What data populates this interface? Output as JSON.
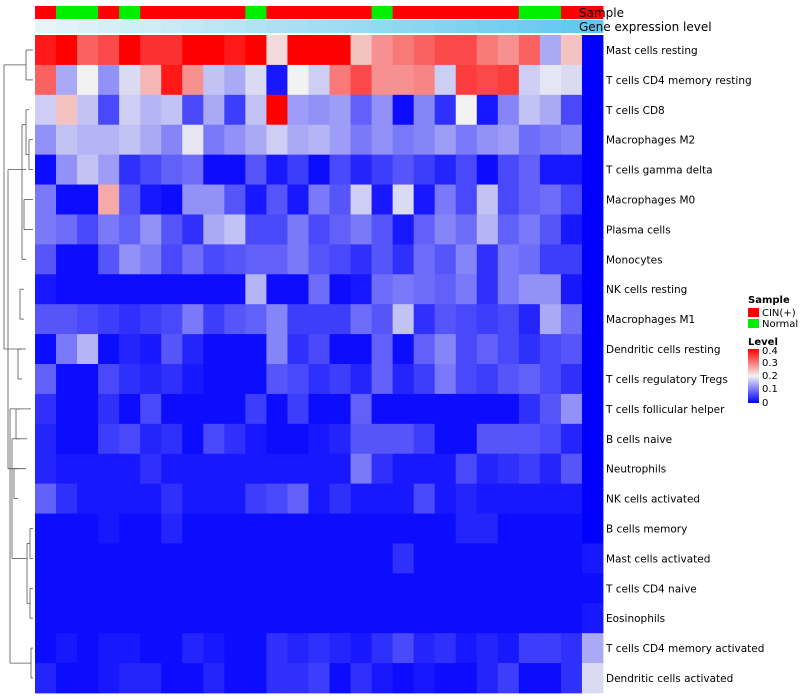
{
  "chart_data": {
    "type": "heatmap",
    "title": "",
    "color_scale": {
      "min": 0,
      "mid": 0.2,
      "max": 0.4,
      "low_color": "#0000ff",
      "mid_color": "#f2f2f2",
      "high_color": "#ff0000"
    },
    "annotations": {
      "sample": {
        "label": "Sample",
        "values": [
          "CIN(+)",
          "Normal",
          "Normal",
          "CIN(+)",
          "Normal",
          "CIN(+)",
          "CIN(+)",
          "CIN(+)",
          "CIN(+)",
          "CIN(+)",
          "Normal",
          "CIN(+)",
          "CIN(+)",
          "CIN(+)",
          "CIN(+)",
          "CIN(+)",
          "Normal",
          "CIN(+)",
          "CIN(+)",
          "CIN(+)",
          "CIN(+)",
          "CIN(+)",
          "CIN(+)",
          "Normal",
          "Normal",
          "CIN(+)",
          "CIN(+)"
        ],
        "colors": {
          "CIN(+)": "#ff0000",
          "Normal": "#00ee00"
        }
      },
      "gene_expression": {
        "label": "Gene expression level",
        "light_color": "#e6f4f8",
        "dark_color": "#5ec8ee"
      }
    },
    "legend": {
      "sample_title": "Sample",
      "sample_items": [
        {
          "label": "CIN(+)",
          "color": "#ff0000"
        },
        {
          "label": "Normal",
          "color": "#00ee00"
        }
      ],
      "level_title": "Level",
      "level_ticks": [
        "0.4",
        "0.3",
        "0.2",
        "0.1",
        "0"
      ]
    },
    "rows": [
      "Mast cells resting",
      "T cells CD4 memory resting",
      "T cells CD8",
      "Macrophages M2",
      "T cells gamma delta",
      "Macrophages M0",
      "Plasma cells",
      "Monocytes",
      "NK cells resting",
      "Macrophages M1",
      "Dendritic cells resting",
      "T cells regulatory  Tregs",
      "T cells follicular helper",
      "B cells naive",
      "Neutrophils",
      "NK cells activated",
      "B cells memory",
      "Mast cells activated",
      "T cells CD4 naive",
      "Eosinophils",
      "T cells CD4 memory activated",
      "Dendritic cells activated"
    ],
    "values": [
      [
        0.38,
        0.4,
        0.32,
        0.34,
        0.4,
        0.36,
        0.36,
        0.4,
        0.4,
        0.38,
        0.4,
        0.22,
        0.4,
        0.4,
        0.4,
        0.24,
        0.28,
        0.3,
        0.32,
        0.34,
        0.34,
        0.3,
        0.28,
        0.32,
        0.14,
        0.24,
        0.0
      ],
      [
        0.32,
        0.14,
        0.2,
        0.12,
        0.18,
        0.25,
        0.38,
        0.28,
        0.16,
        0.14,
        0.18,
        0.02,
        0.2,
        0.17,
        0.3,
        0.34,
        0.28,
        0.28,
        0.29,
        0.17,
        0.35,
        0.34,
        0.35,
        0.17,
        0.19,
        0.18,
        0.0
      ],
      [
        0.17,
        0.24,
        0.16,
        0.06,
        0.17,
        0.15,
        0.16,
        0.06,
        0.14,
        0.05,
        0.16,
        0.4,
        0.13,
        0.12,
        0.13,
        0.08,
        0.12,
        0.01,
        0.11,
        0.04,
        0.2,
        0.02,
        0.11,
        0.16,
        0.14,
        0.06,
        0.0
      ],
      [
        0.12,
        0.16,
        0.15,
        0.15,
        0.16,
        0.14,
        0.11,
        0.19,
        0.1,
        0.12,
        0.14,
        0.17,
        0.14,
        0.15,
        0.13,
        0.1,
        0.12,
        0.1,
        0.11,
        0.13,
        0.1,
        0.12,
        0.13,
        0.09,
        0.1,
        0.11,
        0.0
      ],
      [
        0.01,
        0.12,
        0.16,
        0.13,
        0.04,
        0.06,
        0.08,
        0.09,
        0.01,
        0.01,
        0.07,
        0.02,
        0.05,
        0.01,
        0.06,
        0.03,
        0.05,
        0.07,
        0.05,
        0.03,
        0.06,
        0.01,
        0.06,
        0.08,
        0.02,
        0.02,
        0.0
      ],
      [
        0.1,
        0.01,
        0.01,
        0.26,
        0.07,
        0.02,
        0.01,
        0.12,
        0.12,
        0.07,
        0.02,
        0.07,
        0.02,
        0.1,
        0.07,
        0.17,
        0.02,
        0.18,
        0.02,
        0.1,
        0.06,
        0.16,
        0.06,
        0.08,
        0.09,
        0.06,
        0.0
      ],
      [
        0.1,
        0.09,
        0.06,
        0.1,
        0.08,
        0.12,
        0.07,
        0.04,
        0.14,
        0.16,
        0.06,
        0.06,
        0.1,
        0.06,
        0.08,
        0.1,
        0.07,
        0.02,
        0.08,
        0.11,
        0.09,
        0.15,
        0.08,
        0.1,
        0.07,
        0.02,
        0.0
      ],
      [
        0.07,
        0.01,
        0.01,
        0.07,
        0.12,
        0.1,
        0.06,
        0.09,
        0.06,
        0.07,
        0.08,
        0.08,
        0.1,
        0.07,
        0.06,
        0.04,
        0.07,
        0.04,
        0.09,
        0.07,
        0.11,
        0.04,
        0.1,
        0.09,
        0.05,
        0.05,
        0.0
      ],
      [
        0.02,
        0.01,
        0.01,
        0.01,
        0.01,
        0.01,
        0.01,
        0.01,
        0.01,
        0.01,
        0.15,
        0.01,
        0.01,
        0.09,
        0.01,
        0.02,
        0.09,
        0.1,
        0.09,
        0.08,
        0.1,
        0.04,
        0.1,
        0.12,
        0.12,
        0.02,
        0.0
      ],
      [
        0.07,
        0.07,
        0.06,
        0.05,
        0.04,
        0.05,
        0.06,
        0.1,
        0.05,
        0.07,
        0.08,
        0.11,
        0.05,
        0.05,
        0.05,
        0.09,
        0.07,
        0.16,
        0.04,
        0.07,
        0.06,
        0.05,
        0.06,
        0.03,
        0.14,
        0.09,
        0.0
      ],
      [
        0.01,
        0.1,
        0.15,
        0.01,
        0.03,
        0.02,
        0.07,
        0.03,
        0.01,
        0.01,
        0.01,
        0.11,
        0.04,
        0.06,
        0.01,
        0.01,
        0.08,
        0.01,
        0.08,
        0.11,
        0.06,
        0.08,
        0.06,
        0.04,
        0.06,
        0.07,
        0.0
      ],
      [
        0.08,
        0.01,
        0.01,
        0.06,
        0.04,
        0.03,
        0.04,
        0.02,
        0.01,
        0.01,
        0.01,
        0.07,
        0.06,
        0.04,
        0.05,
        0.03,
        0.08,
        0.03,
        0.05,
        0.1,
        0.06,
        0.05,
        0.07,
        0.08,
        0.06,
        0.04,
        0.0
      ],
      [
        0.04,
        0.01,
        0.01,
        0.04,
        0.01,
        0.06,
        0.01,
        0.01,
        0.01,
        0.01,
        0.05,
        0.01,
        0.05,
        0.01,
        0.01,
        0.08,
        0.01,
        0.01,
        0.01,
        0.01,
        0.01,
        0.01,
        0.01,
        0.04,
        0.07,
        0.12,
        0.0
      ],
      [
        0.03,
        0.01,
        0.01,
        0.05,
        0.06,
        0.03,
        0.04,
        0.01,
        0.06,
        0.04,
        0.02,
        0.01,
        0.01,
        0.02,
        0.03,
        0.07,
        0.07,
        0.07,
        0.05,
        0.01,
        0.01,
        0.07,
        0.07,
        0.07,
        0.06,
        0.03,
        0.0
      ],
      [
        0.03,
        0.02,
        0.02,
        0.02,
        0.02,
        0.04,
        0.02,
        0.02,
        0.02,
        0.02,
        0.02,
        0.02,
        0.02,
        0.02,
        0.02,
        0.1,
        0.04,
        0.02,
        0.02,
        0.02,
        0.06,
        0.03,
        0.04,
        0.05,
        0.03,
        0.07,
        0.0
      ],
      [
        0.08,
        0.04,
        0.02,
        0.02,
        0.02,
        0.02,
        0.04,
        0.02,
        0.02,
        0.02,
        0.05,
        0.06,
        0.08,
        0.02,
        0.04,
        0.02,
        0.02,
        0.02,
        0.06,
        0.02,
        0.03,
        0.02,
        0.02,
        0.02,
        0.02,
        0.02,
        0.0
      ],
      [
        0.01,
        0.01,
        0.01,
        0.02,
        0.01,
        0.01,
        0.03,
        0.01,
        0.01,
        0.01,
        0.01,
        0.01,
        0.01,
        0.01,
        0.01,
        0.01,
        0.01,
        0.01,
        0.01,
        0.01,
        0.03,
        0.03,
        0.01,
        0.01,
        0.01,
        0.01,
        0.0
      ],
      [
        0.01,
        0.01,
        0.01,
        0.01,
        0.01,
        0.01,
        0.01,
        0.01,
        0.01,
        0.01,
        0.01,
        0.01,
        0.01,
        0.01,
        0.01,
        0.01,
        0.01,
        0.04,
        0.01,
        0.01,
        0.01,
        0.01,
        0.01,
        0.01,
        0.01,
        0.01,
        0.02
      ],
      [
        0.01,
        0.01,
        0.01,
        0.01,
        0.01,
        0.01,
        0.01,
        0.01,
        0.01,
        0.01,
        0.01,
        0.01,
        0.01,
        0.01,
        0.01,
        0.01,
        0.01,
        0.01,
        0.01,
        0.01,
        0.01,
        0.01,
        0.01,
        0.01,
        0.01,
        0.01,
        0.01
      ],
      [
        0.01,
        0.01,
        0.01,
        0.01,
        0.01,
        0.01,
        0.01,
        0.01,
        0.01,
        0.01,
        0.01,
        0.01,
        0.01,
        0.01,
        0.01,
        0.01,
        0.01,
        0.01,
        0.01,
        0.01,
        0.01,
        0.01,
        0.01,
        0.01,
        0.01,
        0.01,
        0.02
      ],
      [
        0.01,
        0.02,
        0.01,
        0.02,
        0.02,
        0.01,
        0.01,
        0.03,
        0.02,
        0.01,
        0.01,
        0.04,
        0.03,
        0.04,
        0.03,
        0.02,
        0.04,
        0.06,
        0.03,
        0.04,
        0.02,
        0.03,
        0.02,
        0.05,
        0.05,
        0.04,
        0.14
      ],
      [
        0.03,
        0.01,
        0.01,
        0.02,
        0.03,
        0.03,
        0.01,
        0.01,
        0.03,
        0.01,
        0.01,
        0.04,
        0.04,
        0.05,
        0.01,
        0.04,
        0.02,
        0.01,
        0.02,
        0.01,
        0.01,
        0.03,
        0.05,
        0.01,
        0.01,
        0.04,
        0.18
      ]
    ]
  }
}
